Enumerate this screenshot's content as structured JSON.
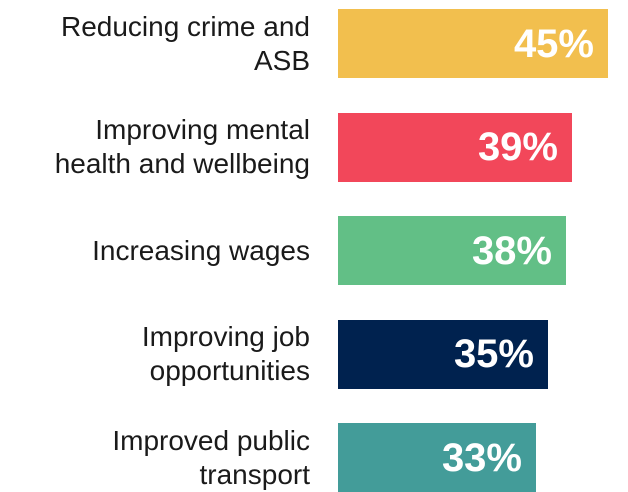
{
  "chart_data": {
    "type": "bar",
    "orientation": "horizontal",
    "categories": [
      "Reducing crime and\nASB",
      "Improving mental\nhealth and wellbeing",
      "Increasing wages",
      "Improving job\nopportunities",
      "Improved public\ntransport"
    ],
    "values": [
      45,
      39,
      38,
      35,
      33
    ],
    "value_labels": [
      "45%",
      "39%",
      "38%",
      "35%",
      "33%"
    ],
    "colors": [
      "#F2BF4E",
      "#F2475A",
      "#62BF86",
      "#00224F",
      "#439C99"
    ],
    "xlim": [
      0,
      100
    ],
    "grid": false,
    "legend": "none"
  }
}
